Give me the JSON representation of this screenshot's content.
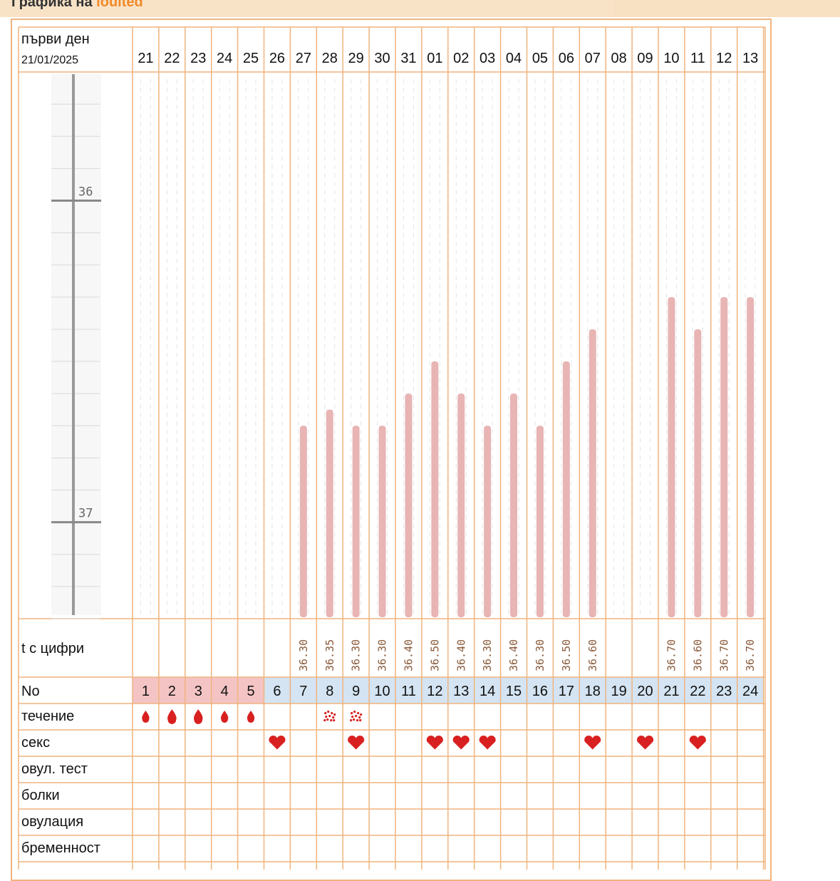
{
  "header": {
    "title_prefix": "Графика на",
    "title_user": "ioulted"
  },
  "first_day": {
    "label": "първи ден",
    "date": "21/01/2025"
  },
  "days": [
    "21",
    "22",
    "23",
    "24",
    "25",
    "26",
    "27",
    "28",
    "29",
    "30",
    "31",
    "01",
    "02",
    "03",
    "04",
    "05",
    "06",
    "07",
    "08",
    "09",
    "10",
    "11",
    "12",
    "13"
  ],
  "scale": {
    "labels": [
      "37",
      "36"
    ]
  },
  "rows": {
    "temp_label": "t с цифри",
    "no_label": "No",
    "flow_label": "течение",
    "sex_label": "секс",
    "ovul_test_label": "овул. тест",
    "pain_label": "болки",
    "ovulation_label": "овулация",
    "pregnancy_label": "бременност"
  },
  "chart_data": {
    "type": "bar",
    "categories": [
      "21",
      "22",
      "23",
      "24",
      "25",
      "26",
      "27",
      "28",
      "29",
      "30",
      "31",
      "01",
      "02",
      "03",
      "04",
      "05",
      "06",
      "07",
      "08",
      "09",
      "10",
      "11",
      "12",
      "13"
    ],
    "temperatures": [
      null,
      null,
      null,
      null,
      null,
      null,
      36.3,
      36.35,
      36.3,
      36.3,
      36.4,
      36.5,
      36.4,
      36.3,
      36.4,
      36.3,
      36.5,
      36.6,
      null,
      null,
      36.7,
      36.6,
      36.7,
      36.7
    ],
    "temperature_labels": [
      "",
      "",
      "",
      "",
      "",
      "",
      "36.30",
      "36.35",
      "36.30",
      "36.30",
      "36.40",
      "36.50",
      "36.40",
      "36.30",
      "36.40",
      "36.30",
      "36.50",
      "36.60",
      "",
      "",
      "36.70",
      "36.60",
      "36.70",
      "36.70"
    ],
    "ylim": [
      35.7,
      37.4
    ],
    "y_ticks": [
      36,
      37
    ],
    "cycle_day_numbers": [
      "1",
      "2",
      "3",
      "4",
      "5",
      "6",
      "7",
      "8",
      "9",
      "10",
      "11",
      "12",
      "13",
      "14",
      "15",
      "16",
      "17",
      "18",
      "19",
      "20",
      "21",
      "22",
      "23",
      "24"
    ],
    "period_days": 5,
    "flow": [
      "drop",
      "drop",
      "drop",
      "drop",
      "drop",
      "",
      "",
      "spots",
      "spots",
      "",
      "",
      "",
      "",
      "",
      "",
      "",
      "",
      "",
      "",
      "",
      "",
      "",
      "",
      ""
    ],
    "sex": [
      false,
      false,
      false,
      false,
      false,
      true,
      false,
      false,
      true,
      false,
      false,
      true,
      true,
      true,
      false,
      false,
      false,
      true,
      false,
      true,
      false,
      true,
      false,
      false
    ]
  },
  "colors": {
    "grid_border": "#f0b47e",
    "bar": "#e8b4b4",
    "period_cell": "#f4c4c4",
    "cycle_cell": "#d4e4f2",
    "heart": "#d92020",
    "drop": "#d92020"
  }
}
